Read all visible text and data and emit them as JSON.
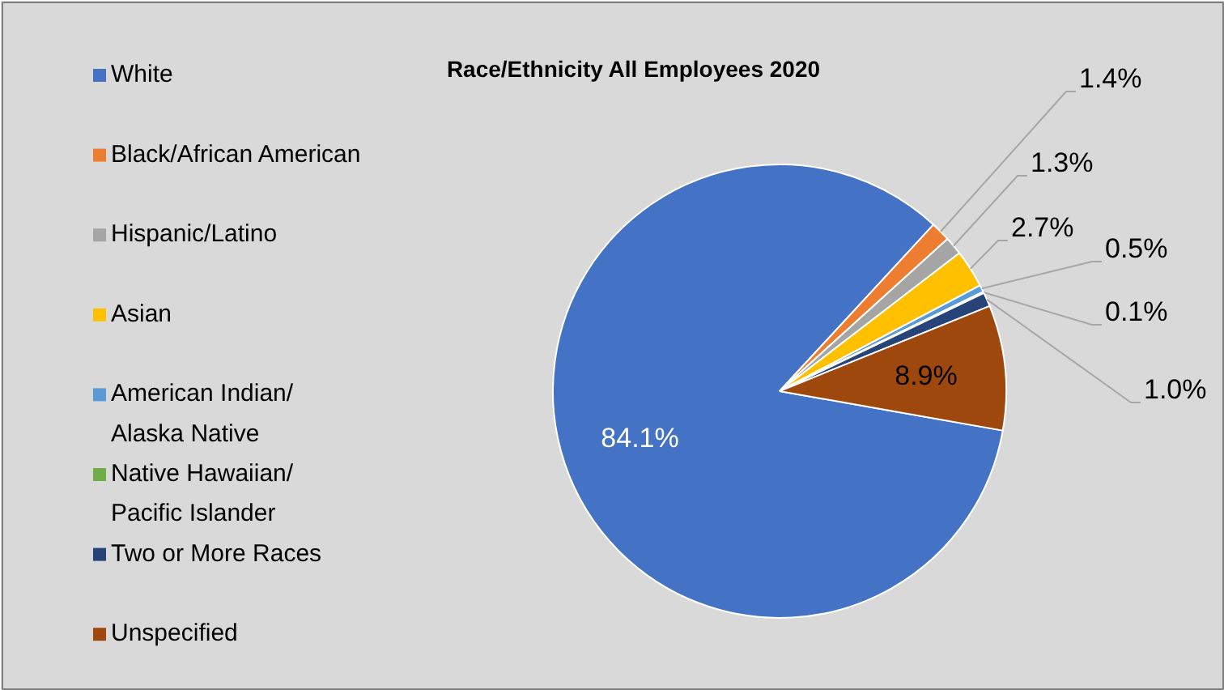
{
  "chart_data": {
    "type": "pie",
    "title": "Race/Ethnicity All Employees 2020",
    "categories": [
      "White",
      "Black/African American",
      "Hispanic/Latino",
      "Asian",
      "American Indian/\nAlaska Native",
      "Native Hawaiian/\nPacific Islander",
      "Two or More Races",
      "Unspecified"
    ],
    "values": [
      84.1,
      1.4,
      1.3,
      2.7,
      0.5,
      0.1,
      1.0,
      8.9
    ],
    "value_labels": [
      "84.1%",
      "1.4%",
      "1.3%",
      "2.7%",
      "0.5%",
      "0.1%",
      "1.0%",
      "8.9%"
    ],
    "colors": [
      "#4472c4",
      "#ed7d31",
      "#a5a5a5",
      "#ffc000",
      "#5b9bd5",
      "#70ad47",
      "#264478",
      "#9e480e"
    ],
    "legend": "left"
  }
}
